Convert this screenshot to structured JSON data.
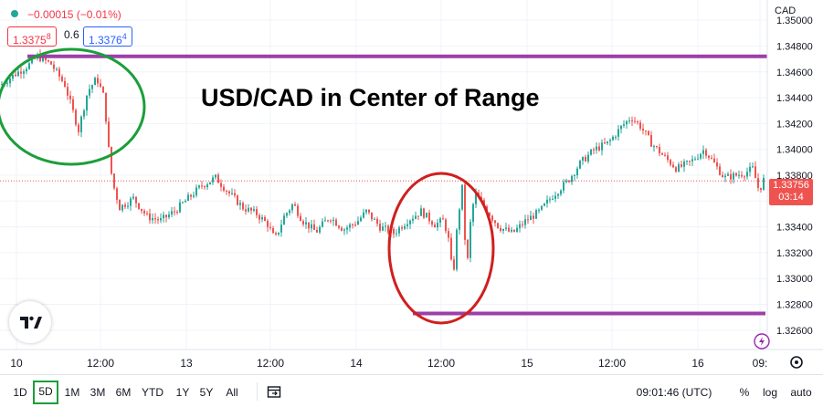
{
  "header": {
    "change_text": "−0.00015 (−0.01%)",
    "bid_price": "1.3375",
    "bid_frac": "8",
    "spread": "0.6",
    "ask_price": "1.3376",
    "ask_frac": "4"
  },
  "title_text": "USD/CAD in Center of Range",
  "currency": "CAD",
  "last_price": "1.33756",
  "countdown": "03:14",
  "toolbar": {
    "ranges": [
      "1D",
      "5D",
      "1M",
      "3M",
      "6M",
      "YTD",
      "1Y",
      "5Y",
      "All"
    ],
    "active_range": "5D",
    "clock": "09:01:46 (UTC)",
    "percent_label": "%",
    "log_label": "log",
    "auto_label": "auto"
  },
  "colors": {
    "up": "#26a69a",
    "down": "#ef5350",
    "resistance_line": "#9c3fa8",
    "circle_green": "#1b9e3a",
    "circle_red": "#d01f1f"
  },
  "chart_data": {
    "type": "candlestick",
    "symbol": "USD/CAD",
    "title": "USD/CAD in Center of Range",
    "y_axis": {
      "side": "right",
      "ylim": [
        1.325,
        1.351
      ],
      "ticks": [
        "1.35000",
        "1.34800",
        "1.34600",
        "1.34400",
        "1.34200",
        "1.34000",
        "1.33800",
        "1.33600",
        "1.33400",
        "1.33200",
        "1.33000",
        "1.32800",
        "1.32600"
      ]
    },
    "x_axis": {
      "ticks": [
        "10",
        "12:00",
        "13",
        "12:00",
        "14",
        "12:00",
        "15",
        "12:00",
        "16",
        "09:"
      ]
    },
    "price_path": [
      [
        0,
        1.345
      ],
      [
        15,
        1.3458
      ],
      [
        30,
        1.3465
      ],
      [
        40,
        1.3472
      ],
      [
        55,
        1.3466
      ],
      [
        70,
        1.345
      ],
      [
        85,
        1.3415
      ],
      [
        95,
        1.3445
      ],
      [
        105,
        1.3455
      ],
      [
        113,
        1.344
      ],
      [
        118,
        1.34
      ],
      [
        122,
        1.3375
      ],
      [
        130,
        1.3355
      ],
      [
        145,
        1.3362
      ],
      [
        160,
        1.3348
      ],
      [
        175,
        1.3345
      ],
      [
        190,
        1.3352
      ],
      [
        205,
        1.3362
      ],
      [
        220,
        1.3372
      ],
      [
        235,
        1.3378
      ],
      [
        250,
        1.3366
      ],
      [
        265,
        1.3355
      ],
      [
        280,
        1.335
      ],
      [
        292,
        1.3342
      ],
      [
        300,
        1.333
      ],
      [
        310,
        1.3348
      ],
      [
        320,
        1.3358
      ],
      [
        330,
        1.3345
      ],
      [
        345,
        1.3336
      ],
      [
        360,
        1.3348
      ],
      [
        375,
        1.3338
      ],
      [
        390,
        1.3344
      ],
      [
        400,
        1.3352
      ],
      [
        415,
        1.334
      ],
      [
        430,
        1.3335
      ],
      [
        445,
        1.3345
      ],
      [
        460,
        1.3352
      ],
      [
        475,
        1.3342
      ],
      [
        485,
        1.3345
      ],
      [
        490,
        1.333
      ],
      [
        495,
        1.33
      ],
      [
        500,
        1.3345
      ],
      [
        505,
        1.337
      ],
      [
        510,
        1.3305
      ],
      [
        515,
        1.3352
      ],
      [
        520,
        1.3365
      ],
      [
        530,
        1.3355
      ],
      [
        545,
        1.334
      ],
      [
        560,
        1.3335
      ],
      [
        575,
        1.3345
      ],
      [
        590,
        1.3352
      ],
      [
        605,
        1.3365
      ],
      [
        620,
        1.3375
      ],
      [
        635,
        1.339
      ],
      [
        650,
        1.34
      ],
      [
        665,
        1.3405
      ],
      [
        680,
        1.3418
      ],
      [
        690,
        1.3425
      ],
      [
        700,
        1.3418
      ],
      [
        712,
        1.3405
      ],
      [
        725,
        1.3395
      ],
      [
        740,
        1.3385
      ],
      [
        755,
        1.339
      ],
      [
        770,
        1.34
      ],
      [
        780,
        1.339
      ],
      [
        792,
        1.3378
      ],
      [
        805,
        1.338
      ],
      [
        815,
        1.3382
      ],
      [
        823,
        1.3385
      ],
      [
        830,
        1.3368
      ],
      [
        836,
        1.3378
      ]
    ],
    "annotations": [
      {
        "type": "horizontal_line",
        "price": 1.3472
      },
      {
        "type": "horizontal_line",
        "price": 1.3273
      },
      {
        "type": "ellipse",
        "color": "green"
      },
      {
        "type": "ellipse",
        "color": "red"
      }
    ],
    "last_price": 1.33756
  }
}
